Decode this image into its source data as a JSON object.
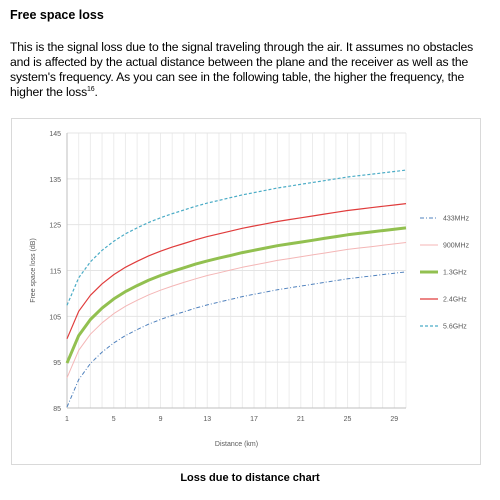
{
  "heading": "Free space loss",
  "paragraph": {
    "text": "This is the signal loss due to the signal traveling through the air. It assumes no obstacles and is affected by the actual distance between the plane and the receiver as well as the system's frequency. As you can see in the following table, the higher the frequency, the higher the loss",
    "footnote": "16"
  },
  "caption": "Loss due to distance chart",
  "chart_data": {
    "type": "line",
    "xlabel": "Distance (km)",
    "ylabel": "Free space loss (dB)",
    "xlim": [
      1,
      30
    ],
    "ylim": [
      85,
      145
    ],
    "xticks": [
      "1",
      "5",
      "9",
      "13",
      "17",
      "21",
      "25",
      "29"
    ],
    "yticks": [
      "85",
      "95",
      "105",
      "115",
      "125",
      "135",
      "145"
    ],
    "x": [
      1,
      2,
      3,
      4,
      5,
      6,
      7,
      8,
      9,
      10,
      11,
      12,
      13,
      14,
      15,
      16,
      17,
      18,
      19,
      20,
      21,
      22,
      23,
      24,
      25,
      26,
      27,
      28,
      29,
      30
    ],
    "series": [
      {
        "name": "433MHz",
        "color": "#4f81bd",
        "style": "dash-dot",
        "values": [
          85.2,
          91.2,
          94.7,
          97.2,
          99.2,
          100.8,
          102.1,
          103.3,
          104.3,
          105.2,
          106.0,
          106.8,
          107.5,
          108.1,
          108.7,
          109.3,
          109.8,
          110.3,
          110.8,
          111.2,
          111.6,
          112.0,
          112.4,
          112.8,
          113.2,
          113.5,
          113.8,
          114.1,
          114.4,
          114.7
        ]
      },
      {
        "name": "900MHz",
        "color": "#f4b6b6",
        "style": "solid-thin",
        "values": [
          91.6,
          97.6,
          101.1,
          103.6,
          105.6,
          107.2,
          108.5,
          109.7,
          110.7,
          111.6,
          112.4,
          113.2,
          113.9,
          114.5,
          115.1,
          115.7,
          116.2,
          116.7,
          117.2,
          117.6,
          118.0,
          118.4,
          118.8,
          119.2,
          119.6,
          119.9,
          120.2,
          120.5,
          120.8,
          121.1
        ]
      },
      {
        "name": "1.3GHz",
        "color": "#92c050",
        "style": "solid-thick",
        "values": [
          94.8,
          100.8,
          104.3,
          106.8,
          108.8,
          110.4,
          111.7,
          112.9,
          113.9,
          114.8,
          115.6,
          116.4,
          117.1,
          117.7,
          118.3,
          118.9,
          119.4,
          119.9,
          120.4,
          120.8,
          121.2,
          121.6,
          122.0,
          122.4,
          122.8,
          123.1,
          123.4,
          123.7,
          124.0,
          124.3
        ]
      },
      {
        "name": "2.4GHz",
        "color": "#e03c3c",
        "style": "solid",
        "values": [
          100.1,
          106.1,
          109.6,
          112.1,
          114.1,
          115.7,
          117.0,
          118.2,
          119.2,
          120.1,
          120.9,
          121.7,
          122.4,
          123.0,
          123.6,
          124.2,
          124.7,
          125.2,
          125.7,
          126.1,
          126.5,
          126.9,
          127.3,
          127.7,
          128.1,
          128.4,
          128.7,
          129.0,
          129.3,
          129.6
        ]
      },
      {
        "name": "5.6GHz",
        "color": "#4bacc6",
        "style": "dashed",
        "values": [
          107.4,
          113.4,
          116.9,
          119.4,
          121.4,
          123.0,
          124.3,
          125.5,
          126.5,
          127.4,
          128.2,
          129.0,
          129.7,
          130.3,
          130.9,
          131.5,
          132.0,
          132.5,
          133.0,
          133.4,
          133.8,
          134.2,
          134.6,
          135.0,
          135.4,
          135.7,
          136.0,
          136.3,
          136.6,
          136.9
        ]
      }
    ]
  }
}
